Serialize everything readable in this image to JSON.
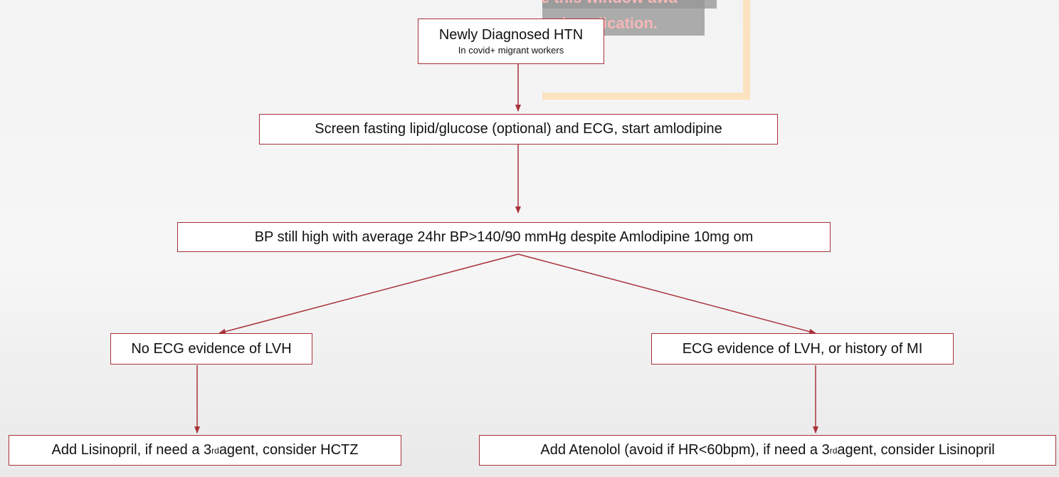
{
  "overlay": {
    "line1": "e this window awa",
    "line2": "ed application.",
    "colors": {
      "banner": "#969696",
      "frame": "#fbe3bf",
      "text": "#f5b7b7"
    }
  },
  "nodes": {
    "n1": {
      "title": "Newly Diagnosed HTN",
      "subtitle": "In covid+ migrant workers"
    },
    "n2": {
      "text": "Screen fasting lipid/glucose (optional) and ECG, start amlodipine"
    },
    "n3": {
      "text": "BP still high with average 24hr BP>140/90 mmHg despite Amlodipine 10mg om"
    },
    "n4": {
      "text": "No ECG evidence of LVH"
    },
    "n5": {
      "text": "ECG evidence of LVH, or history of MI"
    },
    "n6": {
      "pre": "Add Lisinopril, if need a 3",
      "sup": "rd",
      "post": " agent, consider HCTZ"
    },
    "n7": {
      "pre": "Add Atenolol (avoid if HR<60bpm), if need a 3",
      "sup": "rd",
      "post": " agent, consider Lisinopril"
    }
  },
  "edges": [
    {
      "from": "n1",
      "to": "n2"
    },
    {
      "from": "n2",
      "to": "n3"
    },
    {
      "from": "n3",
      "to": "n4"
    },
    {
      "from": "n3",
      "to": "n5"
    },
    {
      "from": "n4",
      "to": "n6"
    },
    {
      "from": "n5",
      "to": "n7"
    }
  ],
  "style": {
    "border_color": "#a8323a",
    "arrow_color": "#a8323a",
    "box_fill": "#ffffff"
  }
}
